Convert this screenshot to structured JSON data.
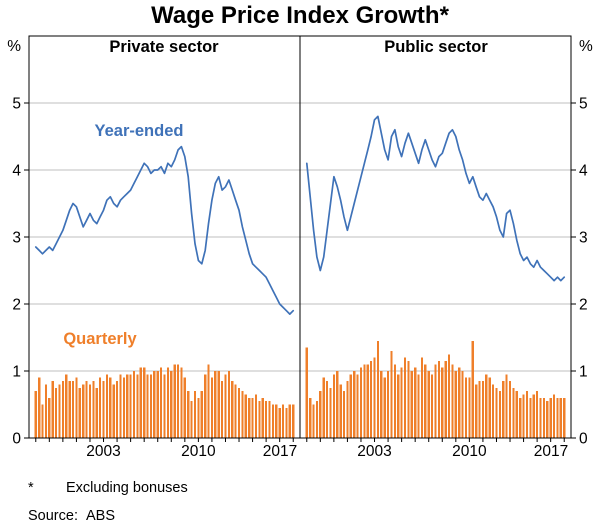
{
  "title": "Wage Price Index Growth*",
  "panel_labels": {
    "left": "Private sector",
    "right": "Public sector"
  },
  "legend": {
    "line": "Year-ended",
    "bar": "Quarterly"
  },
  "colors": {
    "line": "#3f72b8",
    "bar": "#ef7f2a",
    "grid": "#bfbfbf",
    "axis": "#000000"
  },
  "axis": {
    "y_unit": "%",
    "y_ticks": [
      0,
      1,
      2,
      3,
      4,
      5
    ],
    "y_max": 6,
    "x_min": 1997.5,
    "x_max": 2017.5,
    "x_tick_years": [
      2003,
      2010,
      2017
    ]
  },
  "footnotes": [
    {
      "marker": "*",
      "text": "Excluding bonuses"
    },
    {
      "marker": "Source:",
      "text": "ABS"
    }
  ],
  "chart_data": [
    {
      "type": "line+bar",
      "panel": "Private sector",
      "title": "Wage Price Index Growth - Private sector",
      "x_start": 1998.0,
      "x_step": 0.25,
      "x_unit": "year (quarterly observations)",
      "ylim": [
        0,
        6
      ],
      "ylabel": "%",
      "series": [
        {
          "name": "Year-ended",
          "type": "line",
          "color": "#3f72b8",
          "values": [
            2.85,
            2.8,
            2.75,
            2.8,
            2.85,
            2.8,
            2.9,
            3.0,
            3.1,
            3.25,
            3.4,
            3.5,
            3.45,
            3.3,
            3.15,
            3.25,
            3.35,
            3.25,
            3.2,
            3.3,
            3.4,
            3.55,
            3.6,
            3.5,
            3.45,
            3.55,
            3.6,
            3.65,
            3.7,
            3.8,
            3.9,
            4.0,
            4.1,
            4.05,
            3.95,
            4.0,
            4.0,
            4.05,
            3.95,
            4.1,
            4.05,
            4.15,
            4.3,
            4.35,
            4.2,
            3.9,
            3.35,
            2.9,
            2.65,
            2.6,
            2.8,
            3.2,
            3.55,
            3.8,
            3.9,
            3.7,
            3.75,
            3.85,
            3.7,
            3.55,
            3.4,
            3.15,
            2.95,
            2.75,
            2.6,
            2.55,
            2.5,
            2.45,
            2.4,
            2.3,
            2.2,
            2.1,
            2.0,
            1.95,
            1.9,
            1.85,
            1.9
          ]
        },
        {
          "name": "Quarterly",
          "type": "bar",
          "color": "#ef7f2a",
          "values": [
            0.7,
            0.9,
            0.5,
            0.8,
            0.6,
            0.85,
            0.75,
            0.8,
            0.85,
            0.95,
            0.85,
            0.85,
            0.9,
            0.75,
            0.8,
            0.85,
            0.8,
            0.85,
            0.75,
            0.9,
            0.85,
            0.95,
            0.9,
            0.8,
            0.85,
            0.95,
            0.9,
            0.95,
            0.95,
            1.0,
            0.95,
            1.05,
            1.05,
            0.95,
            0.95,
            1.0,
            1.0,
            1.05,
            0.95,
            1.05,
            1.0,
            1.1,
            1.1,
            1.05,
            0.9,
            0.7,
            0.55,
            0.7,
            0.6,
            0.7,
            0.95,
            1.1,
            0.9,
            1.0,
            1.0,
            0.85,
            0.95,
            1.0,
            0.85,
            0.8,
            0.75,
            0.7,
            0.65,
            0.6,
            0.6,
            0.65,
            0.55,
            0.6,
            0.55,
            0.55,
            0.5,
            0.5,
            0.45,
            0.5,
            0.45,
            0.5,
            0.5
          ]
        }
      ]
    },
    {
      "type": "line+bar",
      "panel": "Public sector",
      "title": "Wage Price Index Growth - Public sector",
      "x_start": 1998.0,
      "x_step": 0.25,
      "x_unit": "year (quarterly observations)",
      "ylim": [
        0,
        6
      ],
      "ylabel": "%",
      "series": [
        {
          "name": "Year-ended",
          "type": "line",
          "color": "#3f72b8",
          "values": [
            4.1,
            3.6,
            3.1,
            2.7,
            2.5,
            2.7,
            3.1,
            3.5,
            3.9,
            3.75,
            3.55,
            3.3,
            3.1,
            3.3,
            3.5,
            3.7,
            3.9,
            4.1,
            4.3,
            4.5,
            4.75,
            4.8,
            4.55,
            4.3,
            4.15,
            4.5,
            4.6,
            4.35,
            4.2,
            4.4,
            4.55,
            4.4,
            4.25,
            4.1,
            4.3,
            4.45,
            4.3,
            4.15,
            4.05,
            4.2,
            4.25,
            4.4,
            4.55,
            4.6,
            4.5,
            4.3,
            4.15,
            3.95,
            3.8,
            3.9,
            3.75,
            3.6,
            3.55,
            3.65,
            3.55,
            3.45,
            3.3,
            3.1,
            3.0,
            3.35,
            3.4,
            3.2,
            2.95,
            2.75,
            2.65,
            2.7,
            2.6,
            2.55,
            2.65,
            2.55,
            2.5,
            2.45,
            2.4,
            2.35,
            2.4,
            2.35,
            2.4
          ]
        },
        {
          "name": "Quarterly",
          "type": "bar",
          "color": "#ef7f2a",
          "values": [
            1.35,
            0.6,
            0.5,
            0.55,
            0.7,
            0.9,
            0.85,
            0.75,
            0.95,
            1.0,
            0.8,
            0.7,
            0.85,
            0.95,
            1.0,
            0.95,
            1.05,
            1.1,
            1.1,
            1.15,
            1.2,
            1.45,
            1.0,
            0.9,
            1.0,
            1.3,
            1.1,
            0.95,
            1.05,
            1.2,
            1.15,
            1.0,
            1.05,
            0.95,
            1.2,
            1.1,
            1.0,
            0.95,
            1.1,
            1.15,
            1.05,
            1.15,
            1.25,
            1.1,
            1.0,
            1.05,
            1.0,
            0.9,
            0.9,
            1.45,
            0.8,
            0.85,
            0.85,
            0.95,
            0.9,
            0.8,
            0.75,
            0.7,
            0.85,
            0.95,
            0.85,
            0.75,
            0.7,
            0.6,
            0.65,
            0.7,
            0.6,
            0.65,
            0.7,
            0.6,
            0.6,
            0.55,
            0.6,
            0.65,
            0.6,
            0.6,
            0.6
          ]
        }
      ]
    }
  ]
}
